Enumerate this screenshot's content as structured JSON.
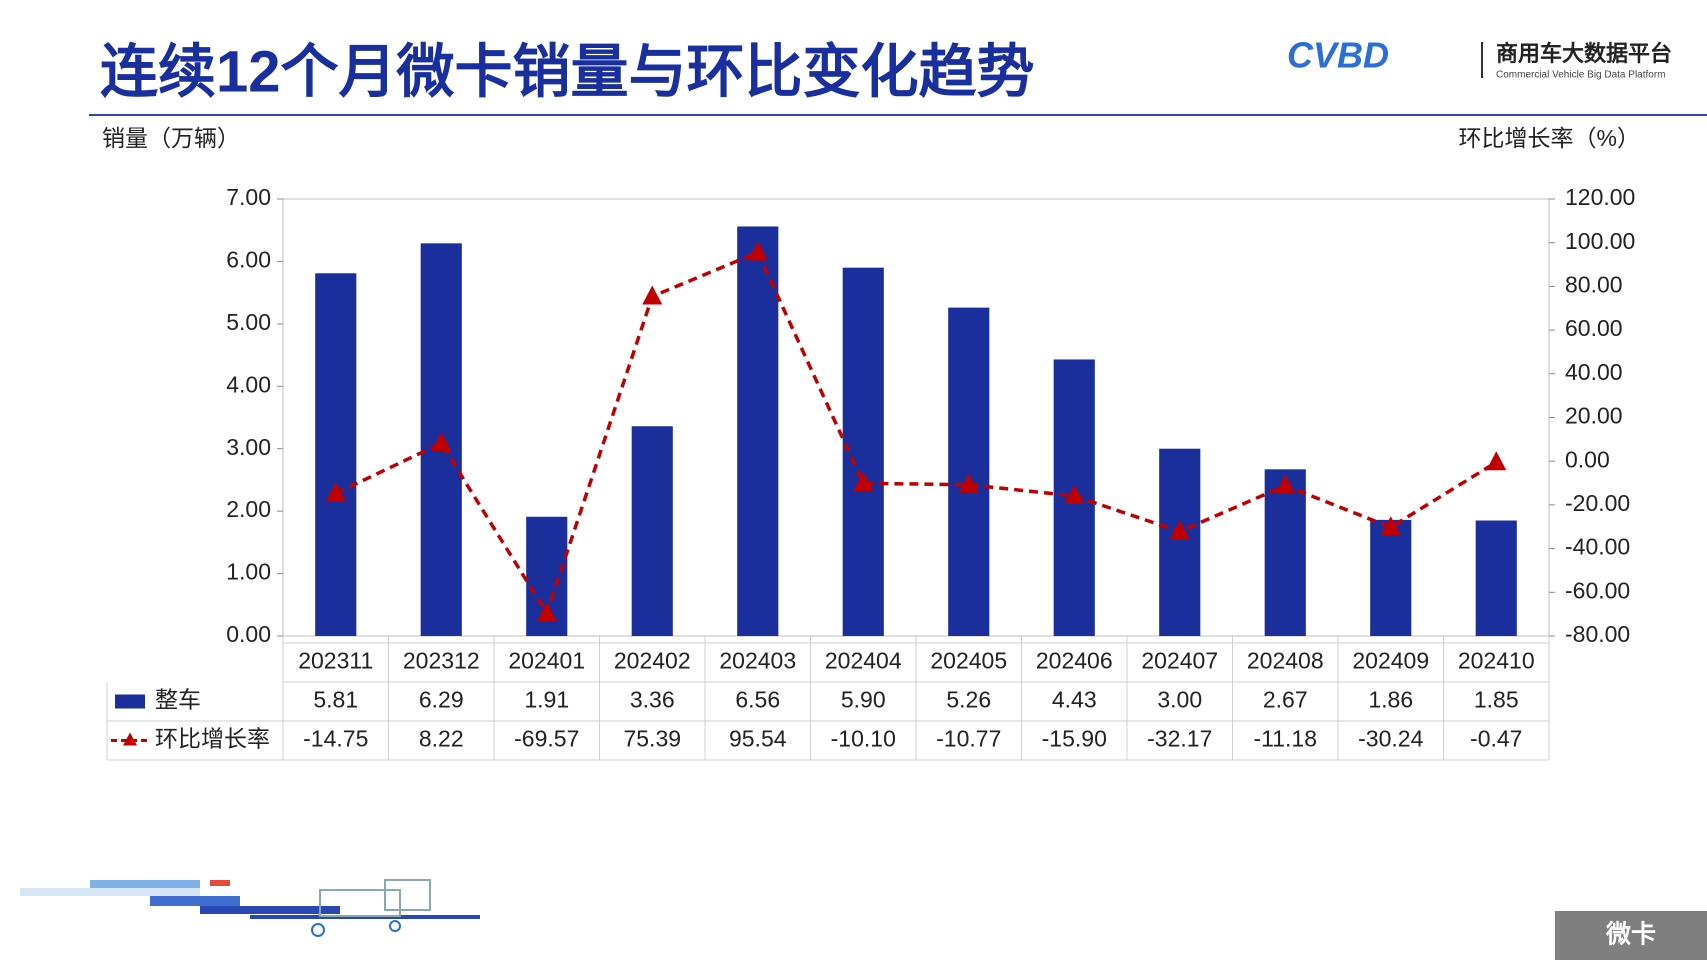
{
  "header": {
    "title": "连续12个月微卡销量与环比变化趋势",
    "logo_mark": "CVBD",
    "logo_name": "商用车大数据平台",
    "logo_subtitle": "Commercial Vehicle Big Data Platform"
  },
  "badge": "微卡",
  "chart_data": {
    "type": "bar",
    "y_label": "销量（万辆）",
    "y2_label": "环比增长率（%）",
    "categories": [
      "202311",
      "202312",
      "202401",
      "202402",
      "202403",
      "202404",
      "202405",
      "202406",
      "202407",
      "202408",
      "202409",
      "202410"
    ],
    "series": [
      {
        "name": "整车",
        "color": "#1a2e9c",
        "type": "bar",
        "values": [
          5.81,
          6.29,
          1.91,
          3.36,
          6.56,
          5.9,
          5.26,
          4.43,
          3.0,
          2.67,
          1.86,
          1.85
        ],
        "value_labels": [
          "5.81",
          "6.29",
          "1.91",
          "3.36",
          "6.56",
          "5.90",
          "5.26",
          "4.43",
          "3.00",
          "2.67",
          "1.86",
          "1.85"
        ]
      },
      {
        "name": "环比增长率",
        "color": "#c00000",
        "type": "line",
        "axis": "y2",
        "values": [
          -14.75,
          8.22,
          -69.57,
          75.39,
          95.54,
          -10.1,
          -10.77,
          -15.9,
          -32.17,
          -11.18,
          -30.24,
          -0.47
        ],
        "value_labels": [
          "-14.75",
          "8.22",
          "-69.57",
          "75.39",
          "95.54",
          "-10.10",
          "-10.77",
          "-15.90",
          "-32.17",
          "-11.18",
          "-30.24",
          "-0.47"
        ]
      }
    ],
    "ylim": [
      0,
      7
    ],
    "yticks": [
      {
        "value": 0,
        "label": "0.00"
      },
      {
        "value": 1,
        "label": "1.00"
      },
      {
        "value": 2,
        "label": "2.00"
      },
      {
        "value": 3,
        "label": "3.00"
      },
      {
        "value": 4,
        "label": "4.00"
      },
      {
        "value": 5,
        "label": "5.00"
      },
      {
        "value": 6,
        "label": "6.00"
      },
      {
        "value": 7,
        "label": "7.00"
      }
    ],
    "y2lim": [
      -80,
      120
    ],
    "y2ticks": [
      {
        "value": -80,
        "label": "-80.00"
      },
      {
        "value": -60,
        "label": "-60.00"
      },
      {
        "value": -40,
        "label": "-40.00"
      },
      {
        "value": -20,
        "label": "-20.00"
      },
      {
        "value": 0,
        "label": "0.00"
      },
      {
        "value": 20,
        "label": "20.00"
      },
      {
        "value": 40,
        "label": "40.00"
      },
      {
        "value": 60,
        "label": "60.00"
      },
      {
        "value": 80,
        "label": "80.00"
      },
      {
        "value": 100,
        "label": "100.00"
      },
      {
        "value": 120,
        "label": "120.00"
      }
    ]
  }
}
